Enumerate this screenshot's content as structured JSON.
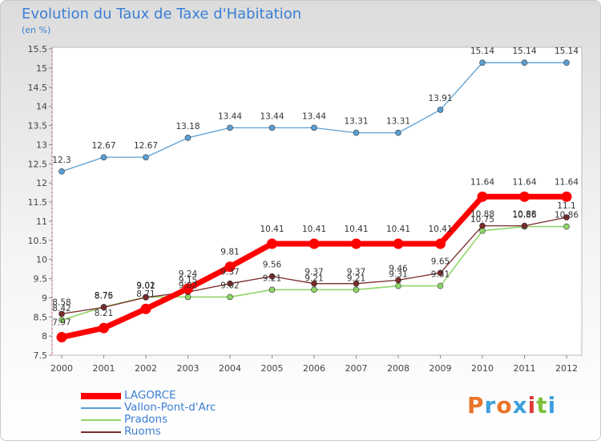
{
  "page": {
    "title": "Evolution du Taux de Taxe d'Habitation",
    "subtitle": "(en %)"
  },
  "brand": {
    "letters": [
      "P",
      "r",
      "o",
      "x",
      "i",
      "t",
      "i"
    ],
    "colors": [
      "#e8752a",
      "#3fa0dd",
      "#e8752a",
      "#3fa0dd",
      "#e03a3a",
      "#7cbf3a",
      "#3fa0dd"
    ]
  },
  "chart_data": {
    "type": "line",
    "title": "Evolution du Taux de Taxe d'Habitation",
    "ylabel": "(en %)",
    "xlabel": "",
    "x": [
      "2000",
      "2001",
      "2002",
      "2003",
      "2004",
      "2005",
      "2006",
      "2007",
      "2008",
      "2009",
      "2010",
      "2011",
      "2012"
    ],
    "ylim": [
      7.5,
      15.5
    ],
    "yticks": [
      "7.5",
      "8",
      "8.5",
      "9",
      "9.5",
      "10",
      "10.5",
      "11",
      "11.5",
      "12",
      "12.5",
      "13",
      "13.5",
      "14",
      "14.5",
      "15",
      "15.5"
    ],
    "grid": false,
    "legend_position": "bottom-left",
    "series": [
      {
        "name": "LAGORCE",
        "color": "#ff0000",
        "values": [
          7.97,
          8.21,
          8.71,
          9.24,
          9.81,
          10.41,
          10.41,
          10.41,
          10.41,
          10.41,
          11.64,
          11.64,
          11.64
        ],
        "labels": [
          "7.97",
          "8.21",
          "8.71",
          "9.24",
          "9.81",
          "10.41",
          "10.41",
          "10.41",
          "10.41",
          "10.41",
          "11.64",
          "11.64",
          "11.64"
        ]
      },
      {
        "name": "Vallon-Pont-d'Arc",
        "color": "#5a9fd4",
        "values": [
          12.3,
          12.67,
          12.67,
          13.18,
          13.44,
          13.44,
          13.44,
          13.31,
          13.31,
          13.91,
          15.14,
          15.14,
          15.14
        ],
        "labels": [
          "12.3",
          "12.67",
          "12.67",
          "13.18",
          "13.44",
          "13.44",
          "13.44",
          "13.31",
          "13.31",
          "13.91",
          "15.14",
          "15.14",
          "15.14"
        ]
      },
      {
        "name": "Pradons",
        "color": "#8fd668",
        "values": [
          8.42,
          8.76,
          9.02,
          9.02,
          9.02,
          9.21,
          9.21,
          9.21,
          9.31,
          9.31,
          10.75,
          10.86,
          10.86
        ],
        "labels": [
          "8.42",
          "8.76",
          "9.02",
          "9.02",
          "9.02",
          "9.21",
          "9.21",
          "9.21",
          "9.31",
          "9.31",
          "10.75",
          "10.86",
          "10.86"
        ]
      },
      {
        "name": "Ruoms",
        "color": "#7a2a2a",
        "values": [
          8.58,
          8.75,
          9.01,
          9.15,
          9.37,
          9.56,
          9.37,
          9.37,
          9.46,
          9.65,
          10.88,
          10.88,
          11.1
        ],
        "labels": [
          "8.58",
          "8.75",
          "9.01",
          "9.15",
          "9.37",
          "9.56",
          "9.37",
          "9.37",
          "9.46",
          "9.65",
          "10.88",
          "10.88",
          "11.1"
        ]
      }
    ]
  }
}
